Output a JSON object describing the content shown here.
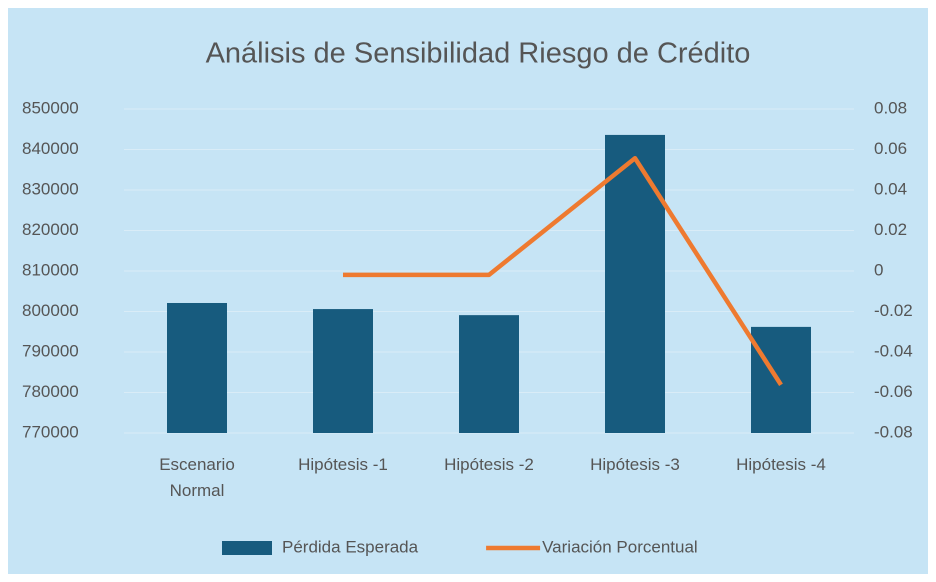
{
  "chart_data": {
    "type": "bar",
    "title": "Análisis de Sensibilidad Riesgo de Crédito",
    "categories": [
      "Escenario Normal",
      "Hipótesis -1",
      "Hipótesis -2",
      "Hipótesis -3",
      "Hipótesis -4"
    ],
    "series": [
      {
        "name": "Pérdida Esperada",
        "type": "bar",
        "color": "#175b7e",
        "values": [
          802100,
          800600,
          799100,
          843600,
          796200
        ]
      },
      {
        "name": "Variación Porcentual",
        "type": "line",
        "axis": "y2",
        "color": "#ee7a30",
        "values": [
          null,
          -0.0019,
          -0.0019,
          0.0557,
          -0.0562
        ]
      }
    ],
    "ylim": [
      770000,
      850000
    ],
    "yticks": [
      770000,
      780000,
      790000,
      800000,
      810000,
      820000,
      830000,
      840000,
      850000
    ],
    "y2lim": [
      -0.08,
      0.08
    ],
    "y2ticks": [
      -0.08,
      -0.06,
      -0.04,
      -0.02,
      0,
      0.02,
      0.04,
      0.06,
      0.08
    ],
    "grid": true,
    "legend": "bottom"
  }
}
